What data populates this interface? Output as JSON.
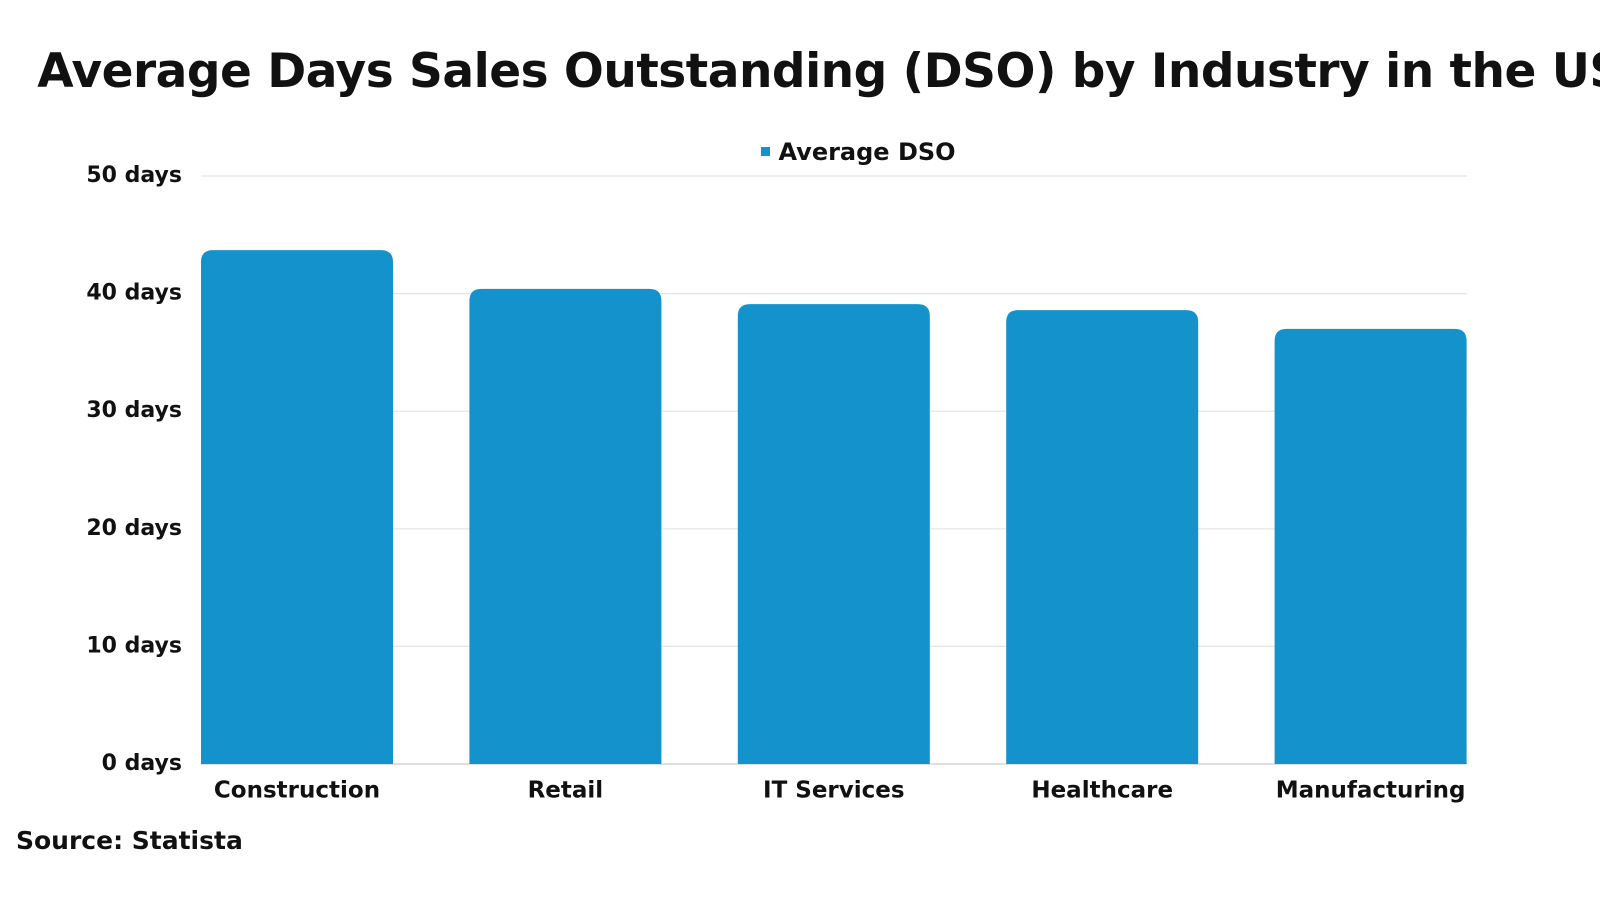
{
  "chart_data": {
    "type": "bar",
    "title": "Average Days Sales Outstanding (DSO) by Industry in the US",
    "categories": [
      "Construction",
      "Retail",
      "IT Services",
      "Healthcare",
      "Manufacturing"
    ],
    "series": [
      {
        "name": "Average DSO",
        "values": [
          43.7,
          40.4,
          39.1,
          38.6,
          37.0
        ]
      }
    ],
    "yticks": [
      "0 days",
      "10 days",
      "20 days",
      "30 days",
      "40 days",
      "50 days"
    ],
    "ylim": [
      0,
      50
    ],
    "grid": true,
    "legend_position": "top-center",
    "bar_color": "#1492cc",
    "source": "Source: Statista"
  }
}
